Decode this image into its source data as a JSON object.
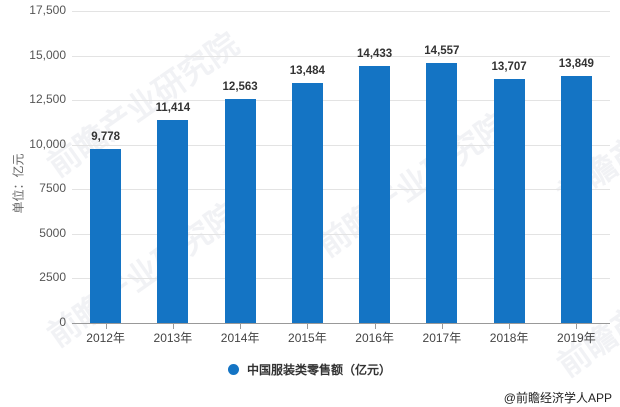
{
  "chart_data": {
    "type": "bar",
    "title": "",
    "xlabel": "",
    "ylabel": "单位：亿元",
    "ylim": [
      0,
      17500
    ],
    "yticks": [
      "0",
      "2500",
      "5000",
      "7500",
      "10,000",
      "12,500",
      "15,000",
      "17,500"
    ],
    "grid": true,
    "legend_position": "bottom",
    "categories": [
      "2012年",
      "2013年",
      "2014年",
      "2015年",
      "2016年",
      "2017年",
      "2018年",
      "2019年"
    ],
    "series": [
      {
        "name": "中国服装类零售额（亿元）",
        "color": "#1474c4",
        "values": [
          9778,
          11414,
          12563,
          13484,
          14433,
          14557,
          13707,
          13849
        ],
        "labels": [
          "9,778",
          "11,414",
          "12,563",
          "13,484",
          "14,433",
          "14,557",
          "13,707",
          "13,849"
        ]
      }
    ]
  },
  "legend": {
    "label": "中国服装类零售额（亿元）"
  },
  "source": "@前瞻经济学人APP",
  "watermark": "前瞻产业研究院"
}
